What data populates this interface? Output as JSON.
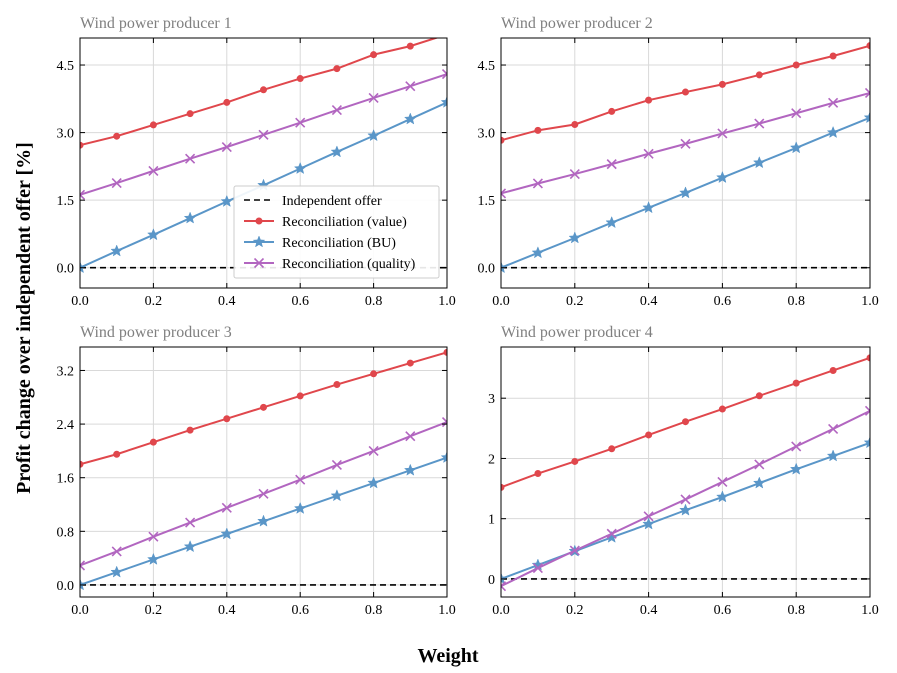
{
  "figure": {
    "xlabel": "Weight",
    "ylabel": "Profit change over independent offer [%]"
  },
  "colors": {
    "value": "#e0474c",
    "bu": "#5a96c8",
    "quality": "#b266c0",
    "independent": "#000000",
    "grid": "#d9d9d9",
    "title": "#7f7f7f"
  },
  "legend": {
    "placement": "inside panel 1, lower-right",
    "entries": [
      "Independent offer",
      "Reconciliation (value)",
      "Reconciliation (BU)",
      "Reconciliation (quality)"
    ]
  },
  "chart_data": [
    {
      "type": "line",
      "title": "Wind power producer 1",
      "x": [
        0.0,
        0.1,
        0.2,
        0.3,
        0.4,
        0.5,
        0.6,
        0.7,
        0.8,
        0.9,
        1.0
      ],
      "xlim": [
        0.0,
        1.0
      ],
      "ylim": [
        -0.45,
        5.1
      ],
      "xticks": [
        0.0,
        0.2,
        0.4,
        0.6,
        0.8,
        1.0
      ],
      "xtick_labels": [
        "0.0",
        "0.2",
        "0.4",
        "0.6",
        "0.8",
        "1.0"
      ],
      "yticks": [
        0.0,
        1.5,
        3.0,
        4.5
      ],
      "ytick_labels": [
        "0.0",
        "1.5",
        "3.0",
        "4.5"
      ],
      "grid": true,
      "series": [
        {
          "name": "Independent offer",
          "key": "independent",
          "values": [
            0,
            0,
            0,
            0,
            0,
            0,
            0,
            0,
            0,
            0,
            0
          ]
        },
        {
          "name": "Reconciliation (value)",
          "key": "value",
          "values": [
            2.72,
            2.92,
            3.17,
            3.42,
            3.67,
            3.95,
            4.2,
            4.42,
            4.73,
            4.92,
            5.18
          ]
        },
        {
          "name": "Reconciliation (BU)",
          "key": "bu",
          "values": [
            0.0,
            0.37,
            0.73,
            1.1,
            1.47,
            1.83,
            2.2,
            2.57,
            2.93,
            3.3,
            3.67
          ]
        },
        {
          "name": "Reconciliation (quality)",
          "key": "quality",
          "values": [
            1.62,
            1.88,
            2.15,
            2.42,
            2.68,
            2.95,
            3.22,
            3.5,
            3.77,
            4.03,
            4.3
          ]
        }
      ]
    },
    {
      "type": "line",
      "title": "Wind power producer 2",
      "x": [
        0.0,
        0.1,
        0.2,
        0.3,
        0.4,
        0.5,
        0.6,
        0.7,
        0.8,
        0.9,
        1.0
      ],
      "xlim": [
        0.0,
        1.0
      ],
      "ylim": [
        -0.45,
        5.1
      ],
      "xticks": [
        0.0,
        0.2,
        0.4,
        0.6,
        0.8,
        1.0
      ],
      "xtick_labels": [
        "0.0",
        "0.2",
        "0.4",
        "0.6",
        "0.8",
        "1.0"
      ],
      "yticks": [
        0.0,
        1.5,
        3.0,
        4.5
      ],
      "ytick_labels": [
        "0.0",
        "1.5",
        "3.0",
        "4.5"
      ],
      "grid": true,
      "series": [
        {
          "name": "Independent offer",
          "key": "independent",
          "values": [
            0,
            0,
            0,
            0,
            0,
            0,
            0,
            0,
            0,
            0,
            0
          ]
        },
        {
          "name": "Reconciliation (value)",
          "key": "value",
          "values": [
            2.83,
            3.05,
            3.18,
            3.47,
            3.72,
            3.9,
            4.07,
            4.28,
            4.5,
            4.7,
            4.93
          ]
        },
        {
          "name": "Reconciliation (BU)",
          "key": "bu",
          "values": [
            0.0,
            0.33,
            0.66,
            1.0,
            1.33,
            1.66,
            2.0,
            2.33,
            2.66,
            3.0,
            3.33
          ]
        },
        {
          "name": "Reconciliation (quality)",
          "key": "quality",
          "values": [
            1.65,
            1.87,
            2.08,
            2.3,
            2.53,
            2.75,
            2.98,
            3.2,
            3.43,
            3.66,
            3.88
          ]
        }
      ]
    },
    {
      "type": "line",
      "title": "Wind power producer 3",
      "x": [
        0.0,
        0.1,
        0.2,
        0.3,
        0.4,
        0.5,
        0.6,
        0.7,
        0.8,
        0.9,
        1.0
      ],
      "xlim": [
        0.0,
        1.0
      ],
      "ylim": [
        -0.18,
        3.55
      ],
      "xticks": [
        0.0,
        0.2,
        0.4,
        0.6,
        0.8,
        1.0
      ],
      "xtick_labels": [
        "0.0",
        "0.2",
        "0.4",
        "0.6",
        "0.8",
        "1.0"
      ],
      "yticks": [
        0.0,
        0.8,
        1.6,
        2.4,
        3.2
      ],
      "ytick_labels": [
        "0.0",
        "0.8",
        "1.6",
        "2.4",
        "3.2"
      ],
      "grid": true,
      "series": [
        {
          "name": "Independent offer",
          "key": "independent",
          "values": [
            0,
            0,
            0,
            0,
            0,
            0,
            0,
            0,
            0,
            0,
            0
          ]
        },
        {
          "name": "Reconciliation (value)",
          "key": "value",
          "values": [
            1.8,
            1.95,
            2.13,
            2.31,
            2.48,
            2.65,
            2.82,
            2.99,
            3.15,
            3.31,
            3.47
          ]
        },
        {
          "name": "Reconciliation (BU)",
          "key": "bu",
          "values": [
            0.0,
            0.19,
            0.38,
            0.57,
            0.76,
            0.95,
            1.14,
            1.33,
            1.52,
            1.71,
            1.9
          ]
        },
        {
          "name": "Reconciliation (quality)",
          "key": "quality",
          "values": [
            0.29,
            0.5,
            0.72,
            0.93,
            1.15,
            1.36,
            1.57,
            1.79,
            2.0,
            2.22,
            2.43
          ]
        }
      ]
    },
    {
      "type": "line",
      "title": "Wind power producer 4",
      "x": [
        0.0,
        0.1,
        0.2,
        0.3,
        0.4,
        0.5,
        0.6,
        0.7,
        0.8,
        0.9,
        1.0
      ],
      "xlim": [
        0.0,
        1.0
      ],
      "ylim": [
        -0.3,
        3.85
      ],
      "xticks": [
        0.0,
        0.2,
        0.4,
        0.6,
        0.8,
        1.0
      ],
      "xtick_labels": [
        "0.0",
        "0.2",
        "0.4",
        "0.6",
        "0.8",
        "1.0"
      ],
      "yticks": [
        0,
        1,
        2,
        3
      ],
      "ytick_labels": [
        "0",
        "1",
        "2",
        "3"
      ],
      "grid": true,
      "series": [
        {
          "name": "Independent offer",
          "key": "independent",
          "values": [
            0,
            0,
            0,
            0,
            0,
            0,
            0,
            0,
            0,
            0,
            0
          ]
        },
        {
          "name": "Reconciliation (value)",
          "key": "value",
          "values": [
            1.52,
            1.75,
            1.95,
            2.16,
            2.39,
            2.61,
            2.82,
            3.04,
            3.25,
            3.46,
            3.67
          ]
        },
        {
          "name": "Reconciliation (BU)",
          "key": "bu",
          "values": [
            0.0,
            0.23,
            0.46,
            0.69,
            0.91,
            1.14,
            1.36,
            1.59,
            1.82,
            2.04,
            2.26
          ]
        },
        {
          "name": "Reconciliation (quality)",
          "key": "quality",
          "values": [
            -0.12,
            0.18,
            0.47,
            0.75,
            1.04,
            1.32,
            1.61,
            1.9,
            2.2,
            2.49,
            2.79
          ]
        }
      ]
    }
  ]
}
